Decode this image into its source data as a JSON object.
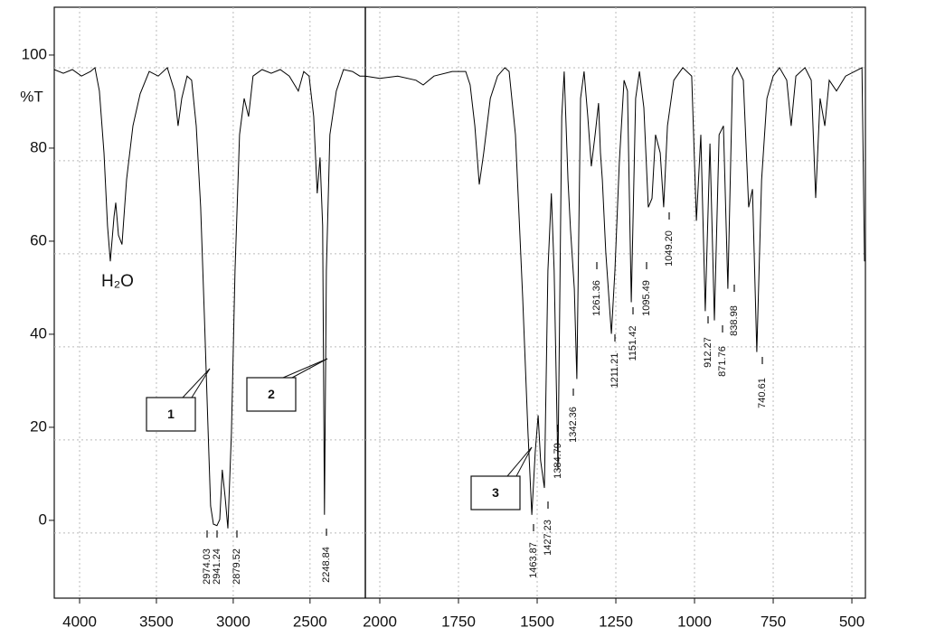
{
  "chart_data": [
    {
      "type": "line",
      "color": "#000000",
      "grid": true,
      "ylabel": "%T",
      "xlim": [
        4165,
        2140
      ],
      "xticks": [
        4000,
        3500,
        3000,
        2500
      ],
      "ylim": [
        -14,
        113
      ],
      "yticks": [
        0,
        20,
        40,
        60,
        80,
        100
      ],
      "x": [
        4165,
        4106,
        4047,
        3988,
        3929,
        3900,
        3871,
        3841,
        3818,
        3800,
        3776,
        3765,
        3747,
        3724,
        3694,
        3653,
        3606,
        3547,
        3488,
        3429,
        3382,
        3359,
        3335,
        3300,
        3271,
        3241,
        3212,
        3188,
        3165,
        3147,
        3129,
        3106,
        3088,
        3071,
        3053,
        3035,
        3012,
        2988,
        2959,
        2929,
        2900,
        2871,
        2812,
        2753,
        2694,
        2635,
        2576,
        2541,
        2506,
        2476,
        2453,
        2435,
        2418,
        2406,
        2394,
        2371,
        2329,
        2282,
        2224,
        2176,
        2141
      ],
      "values": [
        99.6,
        98.8,
        99.6,
        98.2,
        99.2,
        100,
        95,
        81.7,
        66,
        58.4,
        68,
        71,
        64,
        62,
        76,
        87.5,
        94.4,
        99.2,
        98.2,
        100,
        95,
        87.5,
        93.4,
        98.2,
        97.3,
        87.5,
        70,
        46.7,
        23.3,
        5.8,
        1.9,
        1.6,
        2.9,
        13.6,
        7.8,
        1.0,
        21.4,
        56.4,
        85.6,
        93.4,
        89.5,
        98.2,
        99.6,
        98.8,
        99.6,
        98.2,
        95,
        99.2,
        98.2,
        89.5,
        73,
        80.7,
        66,
        3.9,
        56.4,
        85.6,
        95,
        99.6,
        99.2,
        98.2,
        98.2
      ],
      "peak_labels": [
        "2974.03",
        "2941.24",
        "2879.52",
        "2248.84"
      ],
      "annotations": [
        "H₂O"
      ],
      "callouts": [
        "1",
        "2"
      ]
    },
    {
      "type": "line",
      "color": "#000000",
      "grid": true,
      "xlim": [
        2046,
        457
      ],
      "xticks": [
        2000,
        1750,
        1500,
        1250,
        1000,
        750,
        500
      ],
      "ylim": [
        -14,
        113
      ],
      "x": [
        2046,
        2000,
        1943,
        1885,
        1862,
        1828,
        1770,
        1727,
        1713,
        1698,
        1684,
        1670,
        1649,
        1626,
        1603,
        1589,
        1569,
        1546,
        1529,
        1517,
        1506,
        1497,
        1489,
        1477,
        1466,
        1455,
        1446,
        1434,
        1422,
        1414,
        1402,
        1394,
        1382,
        1374,
        1362,
        1351,
        1339,
        1328,
        1316,
        1305,
        1299,
        1293,
        1282,
        1264,
        1253,
        1239,
        1224,
        1213,
        1201,
        1187,
        1175,
        1161,
        1147,
        1135,
        1124,
        1109,
        1098,
        1086,
        1066,
        1037,
        1009,
        994,
        980,
        966,
        951,
        937,
        922,
        908,
        894,
        879,
        865,
        845,
        828,
        816,
        802,
        787,
        770,
        750,
        730,
        707,
        693,
        678,
        649,
        629,
        615,
        601,
        586,
        572,
        549,
        520,
        491,
        468,
        460
      ],
      "values": [
        98.2,
        97.7,
        98.2,
        97.3,
        96.3,
        98.2,
        99.2,
        99.2,
        96.3,
        87.5,
        74.9,
        81.7,
        93.4,
        98.2,
        100,
        99.2,
        85.6,
        50.6,
        21.4,
        3.9,
        17.5,
        25.3,
        15.6,
        9.7,
        56.4,
        73,
        56.4,
        13.6,
        89.5,
        99.2,
        75.9,
        65.2,
        52.5,
        33.1,
        93.4,
        99.2,
        89.5,
        78.8,
        85.6,
        92.4,
        81.7,
        75.9,
        60.3,
        42.8,
        56.4,
        79.8,
        97.3,
        95,
        49.6,
        93.4,
        99.2,
        91.4,
        70,
        71.9,
        85.6,
        81.7,
        70,
        87.5,
        97.3,
        100,
        98.2,
        67.1,
        85.6,
        47.7,
        83.7,
        45.7,
        85.6,
        87.5,
        52.5,
        98.2,
        100,
        97.3,
        70,
        73.9,
        38.9,
        75.9,
        93.4,
        98.2,
        100,
        97.3,
        87.5,
        98.2,
        100,
        97.3,
        72,
        93.4,
        87.5,
        97.3,
        95,
        98.2,
        99.2,
        100,
        58.4
      ],
      "peak_labels": [
        "1463.87",
        "1427.23",
        "1384.79",
        "1342.36",
        "1261.36",
        "1211.21",
        "1151.42",
        "1095.49",
        "1049.20",
        "912.27",
        "871.76",
        "838.98",
        "740.61"
      ],
      "callouts": [
        "3"
      ]
    }
  ]
}
